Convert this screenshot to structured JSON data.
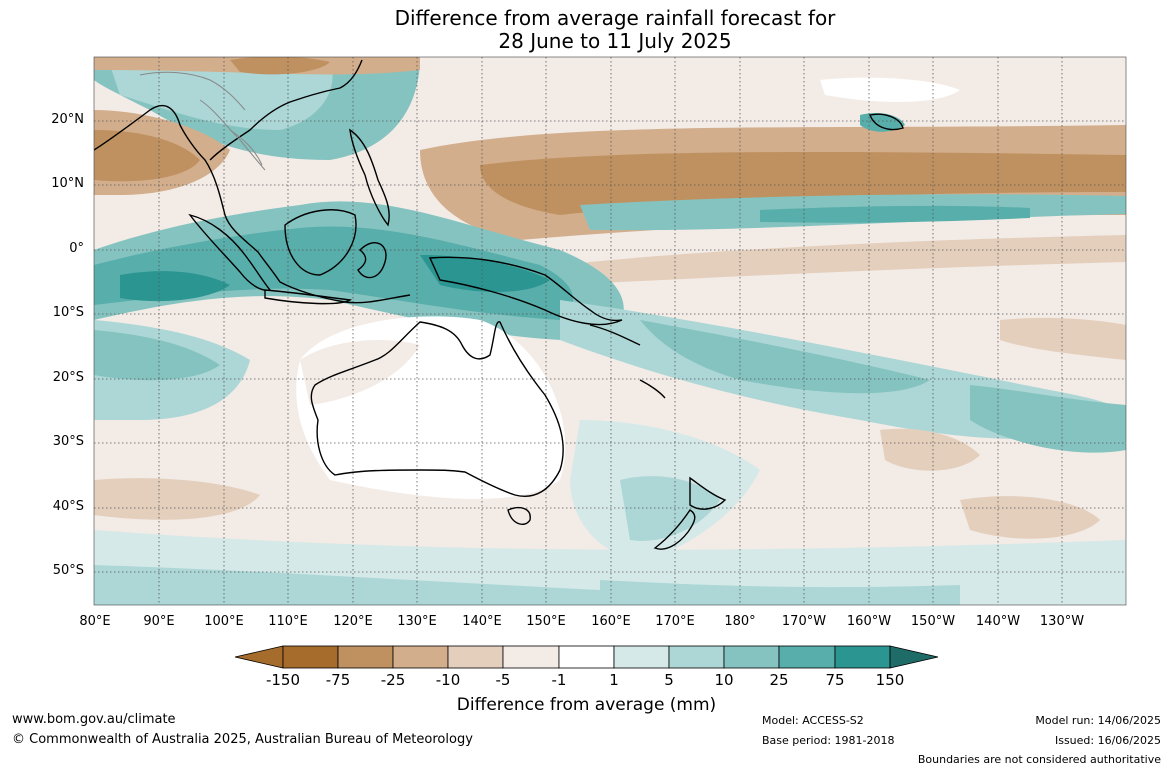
{
  "title": {
    "line1": "Difference from average rainfall forecast for",
    "line2": "28 June to 11 July 2025"
  },
  "map": {
    "lat_labels": [
      "20°N",
      "10°N",
      "0°",
      "10°S",
      "20°S",
      "30°S",
      "40°S",
      "50°S"
    ],
    "lon_labels": [
      "80°E",
      "90°E",
      "100°E",
      "110°E",
      "120°E",
      "130°E",
      "140°E",
      "150°E",
      "160°E",
      "170°E",
      "180°",
      "170°W",
      "160°W",
      "150°W",
      "140°W",
      "130°W"
    ]
  },
  "colorbar": {
    "labels": [
      "-150",
      "-75",
      "-25",
      "-10",
      "-5",
      "-1",
      "1",
      "5",
      "10",
      "25",
      "75",
      "150"
    ],
    "colors": [
      "#a66c2c",
      "#bf9160",
      "#d2ae8c",
      "#e4cfbd",
      "#f3ebe6",
      "#ffffff",
      "#d5e9e8",
      "#acd7d6",
      "#85c3c0",
      "#58aeaa",
      "#2a9591",
      "#1f6b68"
    ],
    "title": "Difference from average (mm)"
  },
  "footer": {
    "website": "www.bom.gov.au/climate",
    "copyright": "© Commonwealth of Australia 2025, Australian Bureau of Meteorology",
    "model": "Model: ACCESS-S2",
    "base_period": "Base period: 1981-2018",
    "model_run": "Model run: 14/06/2025",
    "issued": "Issued: 16/06/2025",
    "disclaimer": "Boundaries are not considered authoritative"
  }
}
